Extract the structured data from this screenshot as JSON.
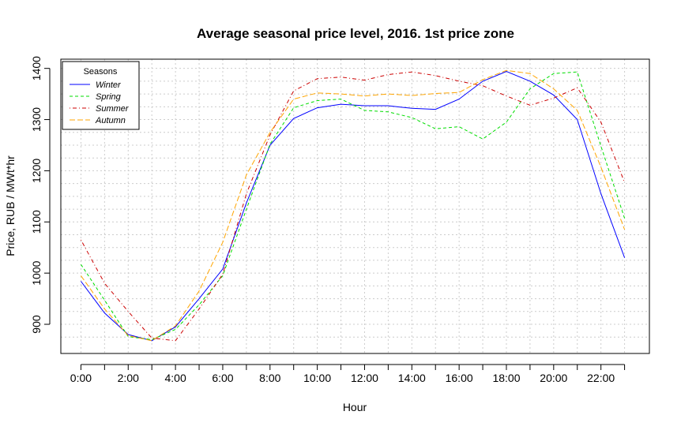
{
  "chart_data": {
    "type": "line",
    "title": "Average seasonal price level, 2016. 1st price zone",
    "xlabel": "Hour",
    "ylabel": "Price, RUB / MWt*hr",
    "x": [
      0,
      1,
      2,
      3,
      4,
      5,
      6,
      7,
      8,
      9,
      10,
      11,
      12,
      13,
      14,
      15,
      16,
      17,
      18,
      19,
      20,
      21,
      22,
      23
    ],
    "xlim": [
      -0.85,
      24.05
    ],
    "ylim": [
      843,
      1418
    ],
    "x_ticks": [
      {
        "x": 0,
        "label": "0:00"
      },
      {
        "x": 2,
        "label": "2:00"
      },
      {
        "x": 4,
        "label": "4:00"
      },
      {
        "x": 6,
        "label": "6:00"
      },
      {
        "x": 8,
        "label": "8:00"
      },
      {
        "x": 10,
        "label": "10:00"
      },
      {
        "x": 12,
        "label": "12:00"
      },
      {
        "x": 14,
        "label": "14:00"
      },
      {
        "x": 16,
        "label": "16:00"
      },
      {
        "x": 18,
        "label": "18:00"
      },
      {
        "x": 20,
        "label": "20:00"
      },
      {
        "x": 22,
        "label": "22:00"
      }
    ],
    "x_minor_ticks": [
      1,
      3,
      5,
      7,
      9,
      11,
      13,
      15,
      17,
      19,
      21,
      23
    ],
    "y_ticks": [
      {
        "y": 900,
        "label": "900"
      },
      {
        "y": 1000,
        "label": "1000"
      },
      {
        "y": 1100,
        "label": "1100"
      },
      {
        "y": 1200,
        "label": "1200"
      },
      {
        "y": 1300,
        "label": "1300"
      },
      {
        "y": 1400,
        "label": "1400"
      }
    ],
    "grid": true,
    "grid_x": [
      0,
      1,
      2,
      3,
      4,
      5,
      6,
      7,
      8,
      9,
      10,
      11,
      12,
      13,
      14,
      15,
      16,
      17,
      18,
      19,
      20,
      21,
      22,
      23
    ],
    "grid_y": [
      875,
      900,
      925,
      950,
      975,
      1000,
      1025,
      1050,
      1075,
      1100,
      1125,
      1150,
      1175,
      1200,
      1225,
      1250,
      1275,
      1300,
      1325,
      1350,
      1375,
      1400
    ],
    "legend_title": "Seasons",
    "legend_position": "top-left",
    "series": [
      {
        "name": "Winter",
        "color": "#0000ff",
        "dash": "solid",
        "values": [
          984,
          922,
          880,
          868,
          895,
          950,
          1008,
          1137,
          1250,
          1302,
          1323,
          1330,
          1327,
          1327,
          1322,
          1320,
          1340,
          1375,
          1394,
          1375,
          1348,
          1300,
          1155,
          1030
        ]
      },
      {
        "name": "Spring",
        "color": "#00dd00",
        "dash": "dashed",
        "values": [
          1017,
          947,
          876,
          870,
          890,
          938,
          995,
          1125,
          1252,
          1323,
          1337,
          1340,
          1318,
          1315,
          1304,
          1282,
          1286,
          1262,
          1295,
          1360,
          1390,
          1393,
          1248,
          1107
        ]
      },
      {
        "name": "Summer",
        "color": "#cc0000",
        "dash": "dotdash",
        "values": [
          1065,
          980,
          925,
          873,
          868,
          930,
          998,
          1155,
          1270,
          1356,
          1380,
          1383,
          1377,
          1388,
          1393,
          1386,
          1375,
          1366,
          1346,
          1328,
          1342,
          1362,
          1295,
          1177
        ]
      },
      {
        "name": "Autumn",
        "color": "#ffa500",
        "dash": "longdash",
        "values": [
          995,
          930,
          878,
          868,
          897,
          965,
          1060,
          1192,
          1275,
          1340,
          1352,
          1350,
          1346,
          1350,
          1347,
          1351,
          1353,
          1378,
          1396,
          1390,
          1360,
          1318,
          1207,
          1085
        ]
      }
    ]
  }
}
